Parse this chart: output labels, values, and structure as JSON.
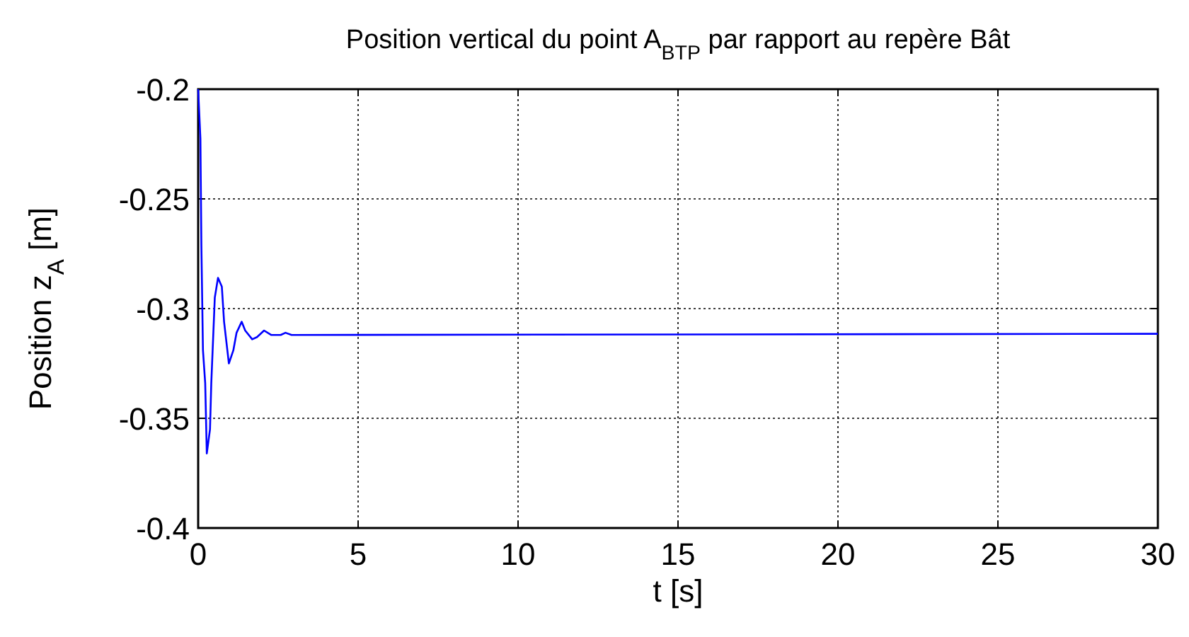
{
  "chart_data": {
    "type": "line",
    "title": "Position vertical du point A$_{BTP}$ par rapport au repère Bât",
    "xlabel": "t [s]",
    "ylabel": "Position z$_{A}$ [m]",
    "series": [
      {
        "color": "#0000ff",
        "x": [
          0,
          0.07,
          0.1,
          0.15,
          0.22,
          0.27,
          0.37,
          0.41,
          0.52,
          0.62,
          0.74,
          0.81,
          0.96,
          1.1,
          1.2,
          1.36,
          1.47,
          1.69,
          1.84,
          2.06,
          2.28,
          2.58,
          2.73,
          2.92,
          30
        ],
        "values": [
          -0.2,
          -0.2225,
          -0.271,
          -0.319,
          -0.334,
          -0.366,
          -0.355,
          -0.334,
          -0.295,
          -0.286,
          -0.29,
          -0.306,
          -0.325,
          -0.319,
          -0.311,
          -0.306,
          -0.31,
          -0.314,
          -0.313,
          -0.31,
          -0.312,
          -0.312,
          -0.311,
          -0.312,
          -0.3115
        ]
      }
    ],
    "xlim": [
      0,
      30
    ],
    "xticks": [
      0,
      5,
      10,
      15,
      20,
      25,
      30
    ],
    "ylim": [
      -0.4,
      -0.2
    ],
    "yticks": [
      -0.4,
      -0.35,
      -0.3,
      -0.25,
      -0.2
    ],
    "grid": true,
    "line_style": "solid"
  }
}
